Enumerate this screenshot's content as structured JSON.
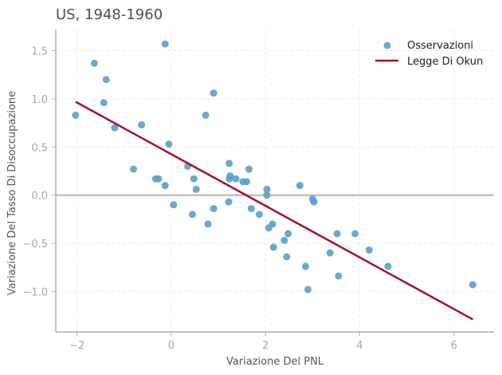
{
  "chart_data": {
    "type": "scatter",
    "title": "US, 1948-1960",
    "xlabel": "Variazione Del PNL",
    "ylabel": "Variazione Del Tasso Di Disoccupazione",
    "xlim": [
      -2.45,
      6.85
    ],
    "ylim": [
      -1.42,
      1.72
    ],
    "xticks": [
      -2,
      0,
      2,
      4,
      6
    ],
    "xtick_labels": [
      "−2",
      "0",
      "2",
      "4",
      "6"
    ],
    "yticks": [
      -1.0,
      -0.5,
      0.0,
      0.5,
      1.0,
      1.5
    ],
    "ytick_labels": [
      "−1.0",
      "−0.5",
      "0.0",
      "0.5",
      "1.0",
      "1.5"
    ],
    "grid": true,
    "legend": "top-right",
    "colors": {
      "points": "#5b9ec9",
      "line": "#a50f2d",
      "zero_line": "#b5b5b5"
    },
    "series": [
      {
        "name": "Osservazioni",
        "kind": "scatter",
        "points": [
          [
            -2.03,
            0.83
          ],
          [
            -1.63,
            1.37
          ],
          [
            -1.38,
            1.2
          ],
          [
            -1.43,
            0.96
          ],
          [
            -1.2,
            0.7
          ],
          [
            -0.63,
            0.73
          ],
          [
            -0.13,
            1.57
          ],
          [
            -0.8,
            0.27
          ],
          [
            -0.33,
            0.17
          ],
          [
            -0.27,
            0.17
          ],
          [
            -0.13,
            0.1
          ],
          [
            -0.05,
            0.53
          ],
          [
            0.05,
            -0.1
          ],
          [
            0.35,
            0.3
          ],
          [
            0.45,
            -0.2
          ],
          [
            0.48,
            0.17
          ],
          [
            0.53,
            0.06
          ],
          [
            0.73,
            0.83
          ],
          [
            0.78,
            -0.3
          ],
          [
            0.9,
            1.06
          ],
          [
            0.9,
            -0.14
          ],
          [
            1.23,
            0.33
          ],
          [
            1.25,
            0.2
          ],
          [
            1.23,
            0.17
          ],
          [
            1.37,
            0.17
          ],
          [
            1.22,
            -0.07
          ],
          [
            1.52,
            0.14
          ],
          [
            1.6,
            0.14
          ],
          [
            1.65,
            0.27
          ],
          [
            1.7,
            -0.14
          ],
          [
            1.87,
            -0.2
          ],
          [
            2.03,
            0.06
          ],
          [
            2.03,
            0.0
          ],
          [
            2.07,
            -0.34
          ],
          [
            2.15,
            -0.3
          ],
          [
            2.17,
            -0.54
          ],
          [
            2.4,
            -0.47
          ],
          [
            2.48,
            -0.4
          ],
          [
            2.45,
            -0.64
          ],
          [
            2.73,
            0.1
          ],
          [
            2.85,
            -0.74
          ],
          [
            2.9,
            -0.98
          ],
          [
            3.0,
            -0.04
          ],
          [
            3.03,
            -0.07
          ],
          [
            3.37,
            -0.6
          ],
          [
            3.52,
            -0.4
          ],
          [
            3.55,
            -0.84
          ],
          [
            3.9,
            -0.4
          ],
          [
            4.2,
            -0.57
          ],
          [
            4.6,
            -0.74
          ],
          [
            6.4,
            -0.93
          ]
        ]
      },
      {
        "name": "Legge Di Okun",
        "kind": "line",
        "points": [
          [
            -2.03,
            0.97
          ],
          [
            6.4,
            -1.29
          ]
        ]
      }
    ]
  }
}
